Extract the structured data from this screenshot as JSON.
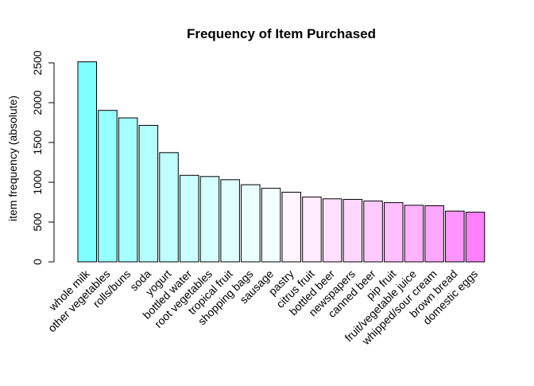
{
  "chart_data": {
    "type": "bar",
    "title": "Frequency of Item Purchased",
    "xlabel": "",
    "ylabel": "item frequency (absolute)",
    "ylim": [
      0,
      2500
    ],
    "yticks": [
      "0",
      "500",
      "1000",
      "1500",
      "2000",
      "2500"
    ],
    "grid": false,
    "legend": "none",
    "categories": [
      "whole milk",
      "other vegetables",
      "rolls/buns",
      "soda",
      "yogurt",
      "bottled water",
      "root vegetables",
      "tropical fruit",
      "shopping bags",
      "sausage",
      "pastry",
      "citrus fruit",
      "bottled beer",
      "newspapers",
      "canned beer",
      "pip fruit",
      "fruit/vegetable juice",
      "whipped/sour cream",
      "brown bread",
      "domestic eggs"
    ],
    "values": [
      2513,
      1903,
      1809,
      1715,
      1372,
      1087,
      1072,
      1032,
      969,
      924,
      875,
      814,
      792,
      785,
      764,
      744,
      711,
      705,
      638,
      624
    ],
    "colors": [
      "#80FFFF",
      "#96FFFF",
      "#A6FFFF",
      "#B3FFFF",
      "#BFFFFF",
      "#CBFFFF",
      "#D6FFFF",
      "#E0FFFF",
      "#EAFFFF",
      "#F4FFFF",
      "#FFF4FF",
      "#FFEAFF",
      "#FFE0FF",
      "#FFD6FF",
      "#FFCBFF",
      "#FFBFFF",
      "#FFB3FF",
      "#FFA6FF",
      "#FF96FF",
      "#FF80FF"
    ]
  }
}
